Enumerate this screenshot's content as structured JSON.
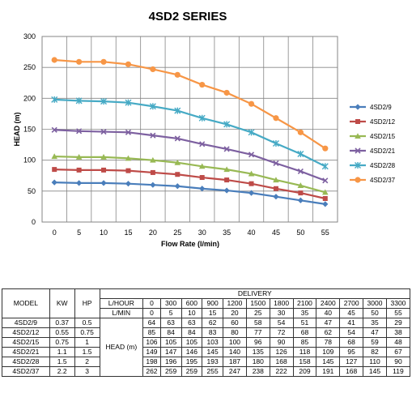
{
  "chart_data": {
    "type": "line",
    "title": "4SD2 SERIES",
    "xlabel": "Flow Rate (l/min)",
    "ylabel": "HEAD (m)",
    "x": [
      0,
      5,
      10,
      15,
      20,
      25,
      30,
      35,
      40,
      45,
      50,
      55
    ],
    "xlim": [
      0,
      55
    ],
    "ylim": [
      0,
      300
    ],
    "yticks": [
      0,
      50,
      100,
      150,
      200,
      250,
      300
    ],
    "grid": true,
    "legend_position": "right",
    "series": [
      {
        "name": "4SD2/9",
        "color": "#4a7ebb",
        "marker": "diamond",
        "values": [
          64,
          63,
          63,
          62,
          60,
          58,
          54,
          51,
          47,
          41,
          35,
          29
        ]
      },
      {
        "name": "4SD2/12",
        "color": "#be4b48",
        "marker": "square",
        "values": [
          85,
          84,
          84,
          83,
          80,
          77,
          72,
          68,
          62,
          54,
          47,
          38
        ]
      },
      {
        "name": "4SD2/15",
        "color": "#98b954",
        "marker": "triangle",
        "values": [
          106,
          105,
          105,
          103,
          100,
          96,
          90,
          85,
          78,
          68,
          59,
          48
        ]
      },
      {
        "name": "4SD2/21",
        "color": "#7d60a0",
        "marker": "x",
        "values": [
          149,
          147,
          146,
          145,
          140,
          135,
          126,
          118,
          109,
          95,
          82,
          67
        ]
      },
      {
        "name": "4SD2/28",
        "color": "#46aac5",
        "marker": "star",
        "values": [
          198,
          196,
          195,
          193,
          187,
          180,
          168,
          158,
          145,
          127,
          110,
          90
        ]
      },
      {
        "name": "4SD2/37",
        "color": "#f79646",
        "marker": "circle",
        "values": [
          262,
          259,
          259,
          255,
          247,
          238,
          222,
          209,
          191,
          168,
          145,
          119
        ]
      }
    ]
  },
  "table": {
    "headers": {
      "model": "MODEL",
      "kw": "KW",
      "hp": "HP",
      "delivery": "DELIVERY",
      "lhour": "L/HOUR",
      "lmin": "L/MIN",
      "head": "HEAD (m)"
    },
    "lhour": [
      "0",
      "300",
      "600",
      "900",
      "1200",
      "1500",
      "1800",
      "2100",
      "2400",
      "2700",
      "3000",
      "3300"
    ],
    "lmin": [
      "0",
      "5",
      "10",
      "15",
      "20",
      "25",
      "30",
      "35",
      "40",
      "45",
      "50",
      "55"
    ],
    "rows": [
      {
        "model": "4SD2/9",
        "kw": "0.37",
        "hp": "0.5",
        "head": [
          "64",
          "63",
          "63",
          "62",
          "60",
          "58",
          "54",
          "51",
          "47",
          "41",
          "35",
          "29"
        ]
      },
      {
        "model": "4SD2/12",
        "kw": "0.55",
        "hp": "0.75",
        "head": [
          "85",
          "84",
          "84",
          "83",
          "80",
          "77",
          "72",
          "68",
          "62",
          "54",
          "47",
          "38"
        ]
      },
      {
        "model": "4SD2/15",
        "kw": "0.75",
        "hp": "1",
        "head": [
          "106",
          "105",
          "105",
          "103",
          "100",
          "96",
          "90",
          "85",
          "78",
          "68",
          "59",
          "48"
        ]
      },
      {
        "model": "4SD2/21",
        "kw": "1.1",
        "hp": "1.5",
        "head": [
          "149",
          "147",
          "146",
          "145",
          "140",
          "135",
          "126",
          "118",
          "109",
          "95",
          "82",
          "67"
        ]
      },
      {
        "model": "4SD2/28",
        "kw": "1.5",
        "hp": "2",
        "head": [
          "198",
          "196",
          "195",
          "193",
          "187",
          "180",
          "168",
          "158",
          "145",
          "127",
          "110",
          "90"
        ]
      },
      {
        "model": "4SD2/37",
        "kw": "2.2",
        "hp": "3",
        "head": [
          "262",
          "259",
          "259",
          "255",
          "247",
          "238",
          "222",
          "209",
          "191",
          "168",
          "145",
          "119"
        ]
      }
    ]
  }
}
